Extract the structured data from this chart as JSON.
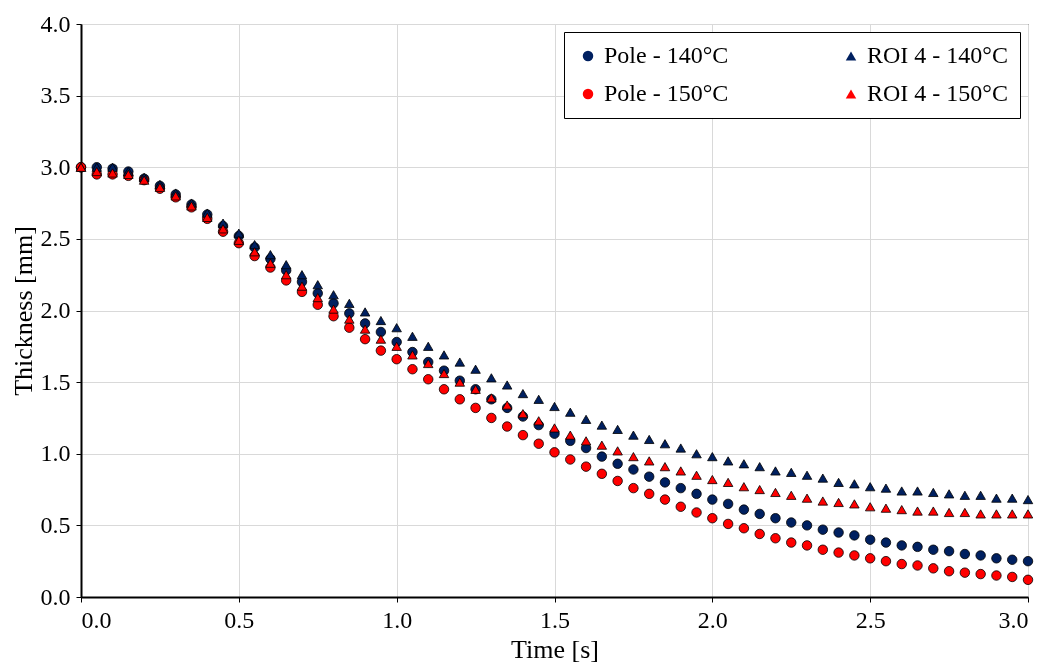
{
  "chart_data": {
    "type": "scatter",
    "xlabel": "Time [s]",
    "ylabel": "Thickness [mm]",
    "x": [
      0,
      0.05,
      0.1,
      0.15,
      0.2,
      0.25,
      0.3,
      0.35,
      0.4,
      0.45,
      0.5,
      0.55,
      0.6,
      0.65,
      0.7,
      0.75,
      0.8,
      0.85,
      0.9,
      0.95,
      1.0,
      1.05,
      1.1,
      1.15,
      1.2,
      1.25,
      1.3,
      1.35,
      1.4,
      1.45,
      1.5,
      1.55,
      1.6,
      1.65,
      1.7,
      1.75,
      1.8,
      1.85,
      1.9,
      1.95,
      2.0,
      2.05,
      2.1,
      2.15,
      2.2,
      2.25,
      2.3,
      2.35,
      2.4,
      2.45,
      2.5,
      2.55,
      2.6,
      2.65,
      2.7,
      2.75,
      2.8,
      2.85,
      2.9,
      2.95,
      3.0
    ],
    "series": [
      {
        "name": "Pole - 140°C",
        "color": "#002060",
        "marker": "circle",
        "values": [
          3.0,
          3.0,
          2.99,
          2.97,
          2.92,
          2.87,
          2.81,
          2.74,
          2.67,
          2.59,
          2.52,
          2.44,
          2.36,
          2.28,
          2.2,
          2.12,
          2.05,
          1.98,
          1.91,
          1.85,
          1.78,
          1.71,
          1.64,
          1.58,
          1.51,
          1.45,
          1.38,
          1.32,
          1.26,
          1.2,
          1.14,
          1.09,
          1.04,
          0.98,
          0.93,
          0.89,
          0.84,
          0.8,
          0.76,
          0.72,
          0.68,
          0.65,
          0.61,
          0.58,
          0.55,
          0.52,
          0.5,
          0.47,
          0.45,
          0.43,
          0.4,
          0.38,
          0.36,
          0.35,
          0.33,
          0.32,
          0.3,
          0.29,
          0.27,
          0.26,
          0.25
        ]
      },
      {
        "name": "Pole - 150°C",
        "color": "#ff0000",
        "marker": "circle",
        "values": [
          3.0,
          2.95,
          2.95,
          2.94,
          2.91,
          2.85,
          2.79,
          2.72,
          2.64,
          2.55,
          2.47,
          2.38,
          2.3,
          2.21,
          2.13,
          2.04,
          1.96,
          1.88,
          1.8,
          1.72,
          1.66,
          1.59,
          1.52,
          1.45,
          1.38,
          1.32,
          1.25,
          1.19,
          1.13,
          1.07,
          1.01,
          0.96,
          0.91,
          0.86,
          0.81,
          0.76,
          0.72,
          0.68,
          0.63,
          0.59,
          0.55,
          0.51,
          0.48,
          0.44,
          0.41,
          0.38,
          0.36,
          0.33,
          0.31,
          0.29,
          0.27,
          0.25,
          0.23,
          0.22,
          0.2,
          0.18,
          0.17,
          0.16,
          0.15,
          0.14,
          0.12
        ]
      },
      {
        "name": "ROI 4 - 140°C",
        "color": "#002060",
        "marker": "triangle",
        "values": [
          3.0,
          3.0,
          3.0,
          2.97,
          2.93,
          2.88,
          2.82,
          2.75,
          2.68,
          2.61,
          2.54,
          2.46,
          2.39,
          2.32,
          2.25,
          2.18,
          2.11,
          2.05,
          1.99,
          1.93,
          1.88,
          1.82,
          1.75,
          1.69,
          1.64,
          1.59,
          1.53,
          1.48,
          1.42,
          1.38,
          1.33,
          1.29,
          1.24,
          1.2,
          1.17,
          1.13,
          1.1,
          1.07,
          1.04,
          1.0,
          0.98,
          0.95,
          0.93,
          0.91,
          0.88,
          0.87,
          0.85,
          0.83,
          0.8,
          0.79,
          0.77,
          0.76,
          0.74,
          0.74,
          0.73,
          0.72,
          0.71,
          0.71,
          0.69,
          0.69,
          0.68
        ]
      },
      {
        "name": "ROI 4 - 150°C",
        "color": "#ff0000",
        "marker": "triangle",
        "values": [
          3.0,
          2.97,
          2.96,
          2.95,
          2.91,
          2.86,
          2.8,
          2.73,
          2.65,
          2.57,
          2.49,
          2.41,
          2.33,
          2.25,
          2.17,
          2.09,
          2.01,
          1.94,
          1.87,
          1.8,
          1.75,
          1.69,
          1.63,
          1.56,
          1.5,
          1.45,
          1.39,
          1.34,
          1.28,
          1.23,
          1.18,
          1.13,
          1.09,
          1.06,
          1.02,
          0.98,
          0.95,
          0.91,
          0.88,
          0.85,
          0.82,
          0.8,
          0.77,
          0.75,
          0.73,
          0.71,
          0.69,
          0.67,
          0.66,
          0.65,
          0.63,
          0.62,
          0.61,
          0.6,
          0.6,
          0.59,
          0.59,
          0.58,
          0.58,
          0.58,
          0.58
        ]
      }
    ],
    "xlim": [
      0,
      3.0
    ],
    "xticks": [
      {
        "value": 0,
        "label": "0.0"
      },
      0.5,
      {
        "value": 1,
        "label": "1.0"
      },
      1.5,
      {
        "value": 2,
        "label": "2.0"
      },
      2.5,
      {
        "value": 3,
        "label": "3.0"
      }
    ],
    "ylim": [
      0,
      4.0
    ],
    "yticks": [
      {
        "value": 0,
        "label": "0.0"
      },
      0.5,
      {
        "value": 1,
        "label": "1.0"
      },
      1.5,
      {
        "value": 2,
        "label": "2.0"
      },
      2.5,
      {
        "value": 3,
        "label": "3.0"
      },
      3.5,
      {
        "value": 4,
        "label": "4.0"
      }
    ],
    "grid": true,
    "legend": "top right"
  }
}
